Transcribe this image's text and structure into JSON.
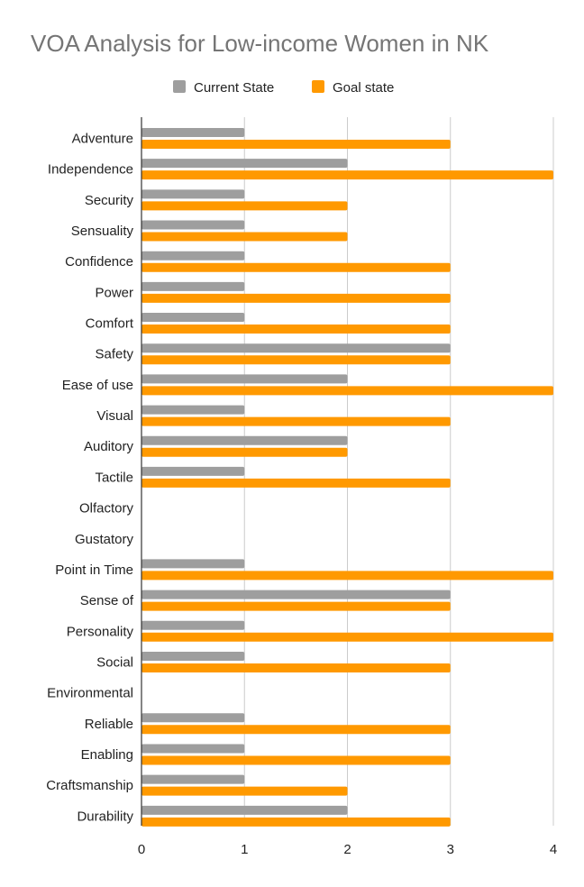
{
  "chart_data": {
    "type": "bar",
    "orientation": "horizontal",
    "title": "VOA Analysis for Low-income Women in NK",
    "xlabel": "",
    "ylabel": "",
    "xlim": [
      0,
      4
    ],
    "ticks": [
      "0",
      "1",
      "2",
      "3",
      "4"
    ],
    "grid": true,
    "legend_position": "top",
    "categories": [
      "Adventure",
      "Independence",
      "Security",
      "Sensuality",
      "Confidence",
      "Power",
      "Comfort",
      "Safety",
      "Ease of use",
      "Visual",
      "Auditory",
      "Tactile",
      "Olfactory",
      "Gustatory",
      "Point in Time",
      "Sense of",
      "Personality",
      "Social",
      "Environmental",
      "Reliable",
      "Enabling",
      "Craftsmanship",
      "Durability"
    ],
    "series": [
      {
        "name": "Current State",
        "color": "#9e9e9e",
        "values": [
          1,
          2,
          1,
          1,
          1,
          1,
          1,
          3,
          2,
          1,
          2,
          1,
          null,
          null,
          1,
          3,
          1,
          1,
          null,
          1,
          1,
          1,
          2
        ]
      },
      {
        "name": "Goal state",
        "color": "#ff9900",
        "values": [
          3,
          4,
          2,
          2,
          3,
          3,
          3,
          3,
          4,
          3,
          2,
          3,
          null,
          null,
          4,
          3,
          4,
          3,
          null,
          3,
          3,
          2,
          3
        ]
      }
    ]
  }
}
